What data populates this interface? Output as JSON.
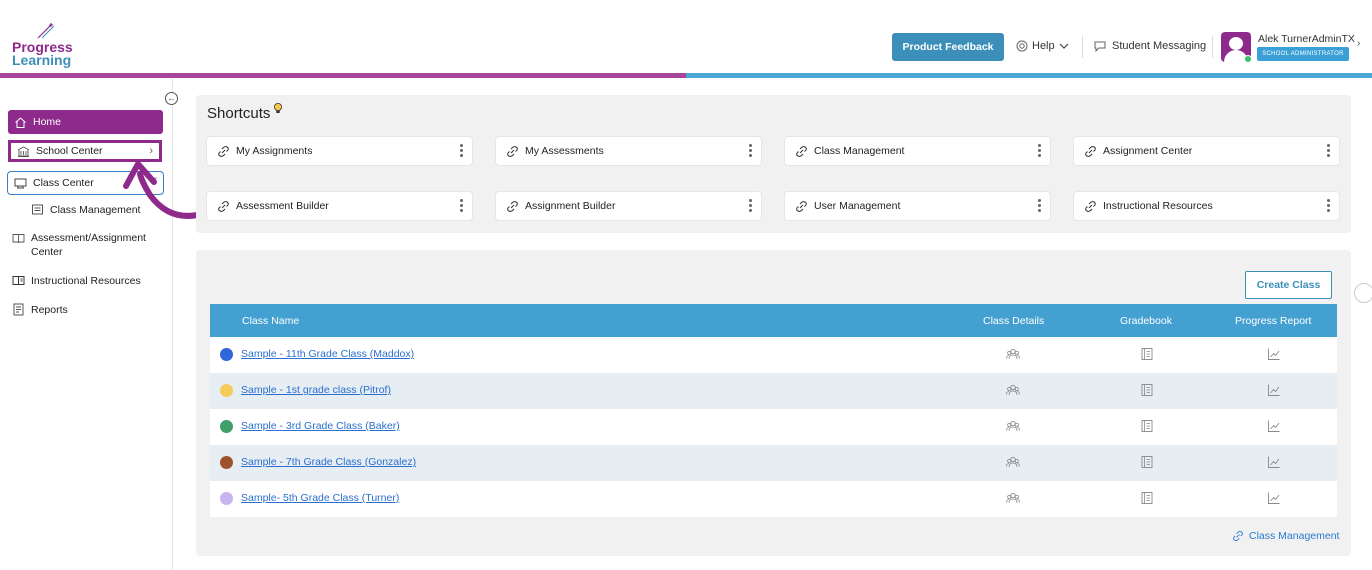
{
  "header": {
    "logo_line1": "Progress",
    "logo_line2": "Learning",
    "feedback_label": "Product Feedback",
    "help_label": "Help",
    "messaging_label": "Student Messaging",
    "user_name": "Alek TurnerAdminTX",
    "user_role": "SCHOOL ADMINISTRATOR"
  },
  "sidebar": {
    "items": [
      {
        "label": "Home"
      },
      {
        "label": "School Center"
      },
      {
        "label": "Class Center"
      },
      {
        "label": "Class Management"
      },
      {
        "label_line1": "Assessment/Assignment",
        "label_line2": "Center"
      },
      {
        "label": "Instructional Resources"
      },
      {
        "label": "Reports"
      }
    ]
  },
  "shortcuts": {
    "title": "Shortcuts",
    "cards": [
      {
        "label": "My Assignments"
      },
      {
        "label": "My Assessments"
      },
      {
        "label": "Class Management"
      },
      {
        "label": "Assignment Center"
      },
      {
        "label": "Assessment Builder"
      },
      {
        "label": "Assignment Builder"
      },
      {
        "label": "User Management"
      },
      {
        "label": "Instructional Resources"
      }
    ]
  },
  "classes": {
    "create_label": "Create Class",
    "columns": [
      "Class Name",
      "Class Details",
      "Gradebook",
      "Progress Report"
    ],
    "rows": [
      {
        "name": "Sample - 11th Grade Class (Maddox)",
        "color": "#2f67d8"
      },
      {
        "name": "Sample - 1st grade class (Pitrof)",
        "color": "#f5cc5a"
      },
      {
        "name": "Sample - 3rd Grade Class (Baker)",
        "color": "#3fa06a"
      },
      {
        "name": "Sample - 7th Grade Class (Gonzalez)",
        "color": "#a0522d"
      },
      {
        "name": "Sample- 5th Grade Class (Turner)",
        "color": "#c8b4ee"
      }
    ],
    "footer_link": "Class Management"
  },
  "colors": {
    "brand_purple": "#8d2a8b",
    "brand_blue": "#3c8fb9",
    "table_header": "#43a0d1",
    "row_alt": "#e6edf3"
  }
}
